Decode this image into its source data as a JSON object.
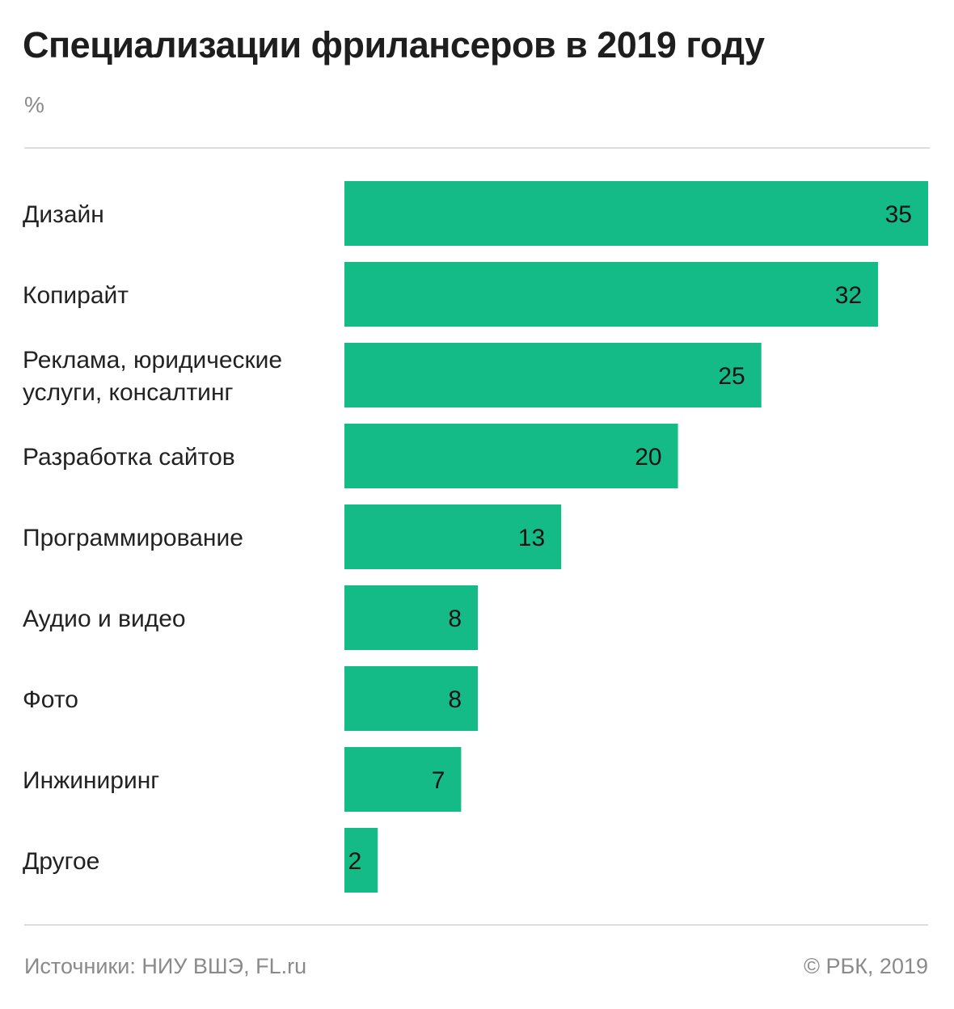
{
  "chart_data": {
    "type": "bar",
    "orientation": "horizontal",
    "title": "Специализации фрилансеров в 2019 году",
    "unit": "%",
    "categories": [
      [
        "Дизайн"
      ],
      [
        "Копирайт"
      ],
      [
        "Реклама, юридические",
        "услуги, консалтинг"
      ],
      [
        "Разработка сайтов"
      ],
      [
        "Программирование"
      ],
      [
        "Аудио и видео"
      ],
      [
        "Фото"
      ],
      [
        "Инжиниринг"
      ],
      [
        "Другое"
      ]
    ],
    "values": [
      35,
      32,
      25,
      20,
      13,
      8,
      8,
      7,
      2
    ],
    "value_labels": [
      "35",
      "32",
      "25",
      "20",
      "13",
      "8",
      "8",
      "7",
      "2"
    ],
    "xlim": [
      0,
      35
    ],
    "grid": false,
    "legend": "none",
    "bar_color": "#14bb87"
  },
  "footer": {
    "source": "Источники: НИУ ВШЭ, FL.ru",
    "copyright": "© РБК, 2019"
  }
}
